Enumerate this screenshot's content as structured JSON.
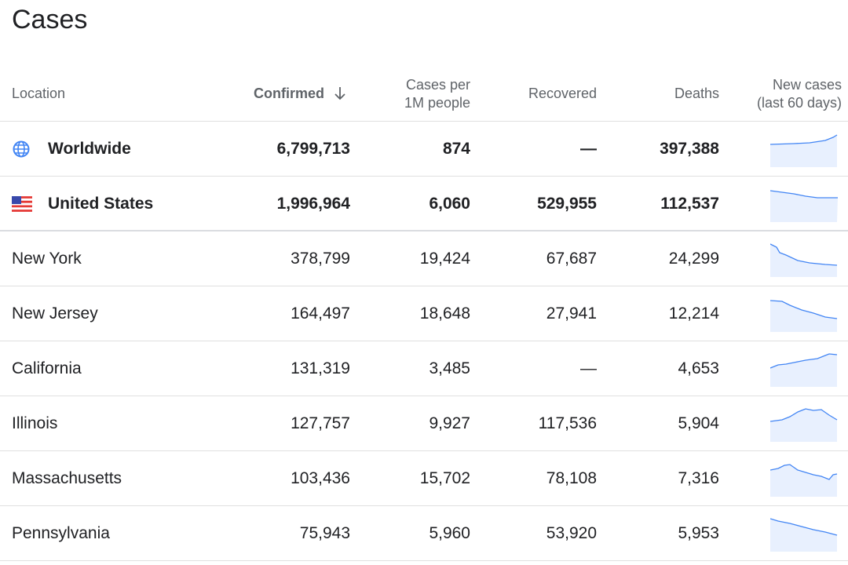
{
  "title": "Cases",
  "table": {
    "headers": [
      [
        "Location"
      ],
      [
        "Confirmed"
      ],
      [
        "Cases per",
        "1M people"
      ],
      [
        "Recovered"
      ],
      [
        "Deaths"
      ],
      [
        "New cases",
        "(last 60 days)"
      ]
    ],
    "rows": [
      [
        "Worldwide",
        "6,799,713",
        "874",
        "—",
        "397,388"
      ],
      [
        "United States",
        "1,996,964",
        "6,060",
        "529,955",
        "112,537"
      ],
      [
        "New York",
        "378,799",
        "19,424",
        "67,687",
        "24,299"
      ],
      [
        "New Jersey",
        "164,497",
        "18,648",
        "27,941",
        "12,214"
      ],
      [
        "California",
        "131,319",
        "3,485",
        "—",
        "4,653"
      ],
      [
        "Illinois",
        "127,757",
        "9,927",
        "117,536",
        "5,904"
      ],
      [
        "Massachusetts",
        "103,436",
        "15,702",
        "78,108",
        "7,316"
      ],
      [
        "Pennsylvania",
        "75,943",
        "5,960",
        "53,920",
        "5,953"
      ]
    ]
  }
}
